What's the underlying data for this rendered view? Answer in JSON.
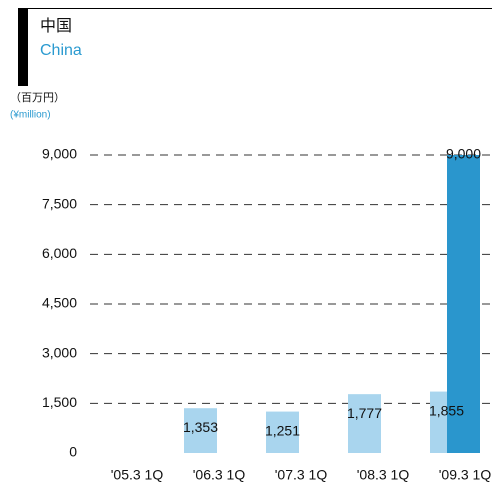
{
  "chart_data": {
    "type": "bar",
    "title": "中国",
    "subtitle": "China",
    "unit_label": "（百万円）",
    "unit_label_en": "(¥million)",
    "categories": [
      "'05.3 1Q",
      "'06.3 1Q",
      "'07.3 1Q",
      "'08.3 1Q",
      "'09.3 1Q"
    ],
    "series": [
      {
        "color": "#a9d5ee",
        "values": [
          null,
          1353,
          1251,
          1777,
          1855
        ],
        "value_labels": [
          null,
          "1,353",
          "1,251",
          "1,777",
          "1,855"
        ]
      },
      {
        "color": "#2a96cd",
        "values": [
          null,
          null,
          null,
          null,
          9000
        ],
        "value_labels": [
          null,
          null,
          null,
          null,
          "9,000"
        ]
      }
    ],
    "ylim": [
      0,
      9000
    ],
    "yticks": [
      0,
      {
        "value": 1500,
        "label": "1,500"
      },
      {
        "value": 3000,
        "label": "3,000"
      },
      {
        "value": 4500,
        "label": "4,500"
      },
      {
        "value": 6000,
        "label": "6,000"
      },
      {
        "value": 7500,
        "label": "7,500"
      },
      {
        "value": 9000,
        "label": "9,000"
      }
    ],
    "grid": true
  }
}
